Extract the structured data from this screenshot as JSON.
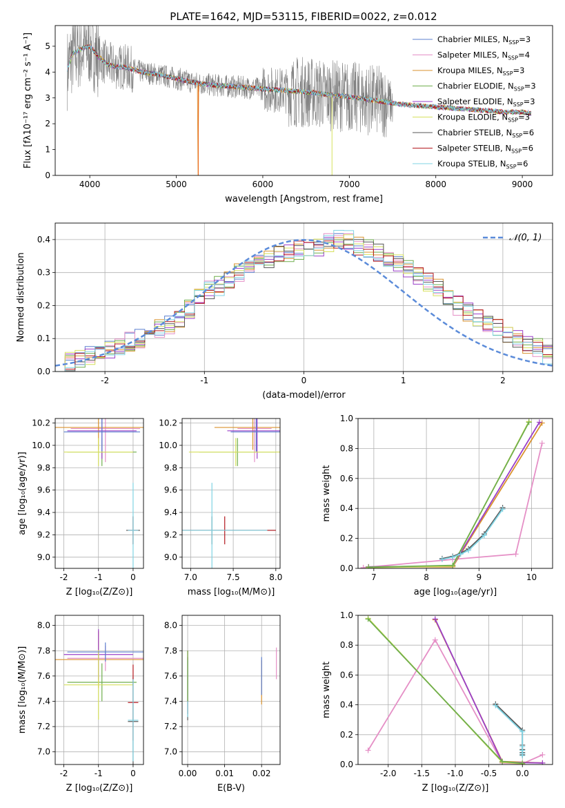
{
  "figure": {
    "title": "PLATE=1642, MJD=53115, FIBERID=0022, z=0.012"
  },
  "colors": {
    "Chabrier MILES": "#5b7fcf",
    "Salpeter MILES": "#e58fc6",
    "Kroupa MILES": "#d9922e",
    "Chabrier ELODIE": "#6fae4d",
    "Salpeter ELODIE": "#9a3fc9",
    "Kroupa ELODIE": "#d6e05c",
    "Chabrier STELIB": "#555555",
    "Salpeter STELIB": "#b3161c",
    "Kroupa STELIB": "#7fd3e3",
    "observed": "#808080",
    "gaussian": "#5b8bd9",
    "orange_line": "#ee6a22"
  },
  "chart_data": [
    {
      "id": "spectrum",
      "type": "line",
      "title": "PLATE=1642, MJD=53115, FIBERID=0022, z=0.012",
      "xlabel": "wavelength [Angstrom, rest frame]",
      "ylabel": "Flux [fλ10⁻¹⁷ erg cm⁻² s⁻¹ A⁻¹]",
      "xlim": [
        3600,
        9350
      ],
      "ylim": [
        0,
        5.8
      ],
      "xticks": [
        4000,
        5000,
        6000,
        7000,
        8000,
        9000
      ],
      "yticks": [
        0,
        1,
        2,
        3,
        4,
        5
      ],
      "legend_position": "top-right",
      "legend": [
        {
          "name": "Chabrier MILES",
          "nssp": "3"
        },
        {
          "name": "Salpeter MILES",
          "nssp": "4"
        },
        {
          "name": "Kroupa MILES",
          "nssp": "3"
        },
        {
          "name": "Chabrier ELODIE",
          "nssp": "3"
        },
        {
          "name": "Salpeter ELODIE",
          "nssp": "3"
        },
        {
          "name": "Kroupa ELODIE",
          "nssp": "3"
        },
        {
          "name": "Chabrier STELIB",
          "nssp": "6"
        },
        {
          "name": "Salpeter STELIB",
          "nssp": "6"
        },
        {
          "name": "Kroupa STELIB",
          "nssp": "6"
        }
      ],
      "model_continuum": {
        "x": [
          3740,
          3800,
          3900,
          4000,
          4100,
          4200,
          4300,
          4400,
          4600,
          4800,
          5000,
          5200,
          5400,
          5600,
          5800,
          6000,
          6200,
          6400,
          6600,
          6800,
          7000,
          7200,
          7400,
          7600,
          7800,
          8000,
          8200,
          8400,
          8600,
          8800,
          9000,
          9100
        ],
        "y": [
          4.1,
          4.7,
          4.9,
          5.0,
          4.6,
          4.3,
          4.2,
          4.2,
          4.0,
          3.9,
          3.75,
          3.6,
          3.5,
          3.45,
          3.4,
          3.35,
          3.3,
          3.25,
          3.2,
          3.1,
          3.05,
          2.95,
          2.85,
          2.75,
          2.7,
          2.65,
          2.6,
          2.55,
          2.5,
          2.45,
          2.45,
          2.4
        ]
      }
    },
    {
      "id": "residuals",
      "type": "bar",
      "xlabel": "(data-model)/error",
      "ylabel": "Normed distribution",
      "xlim": [
        -2.5,
        2.5
      ],
      "ylim": [
        0,
        0.45
      ],
      "xticks": [
        -2,
        -1,
        0,
        1,
        2
      ],
      "yticks": [
        0.0,
        0.1,
        0.2,
        0.3,
        0.4
      ],
      "legend": "𝒩(0, 1)",
      "legend_position": "top-right",
      "bin_edges_start": -2.5,
      "bin_width": 0.1,
      "histogram_mean": [
        0.02,
        0.03,
        0.04,
        0.05,
        0.06,
        0.065,
        0.08,
        0.09,
        0.1,
        0.11,
        0.13,
        0.14,
        0.16,
        0.19,
        0.22,
        0.25,
        0.26,
        0.28,
        0.3,
        0.31,
        0.33,
        0.34,
        0.35,
        0.36,
        0.37,
        0.38,
        0.38,
        0.39,
        0.4,
        0.4,
        0.38,
        0.37,
        0.36,
        0.34,
        0.33,
        0.31,
        0.29,
        0.27,
        0.25,
        0.22,
        0.2,
        0.18,
        0.16,
        0.15,
        0.13,
        0.11,
        0.1,
        0.08,
        0.07,
        0.05
      ],
      "gaussian": {
        "mu": 0,
        "sigma": 1
      }
    },
    {
      "id": "age_vs_Z",
      "type": "scatter",
      "xlabel": "Z [log₁₀(Z/Z⊙)]",
      "ylabel": "age  [log₁₀(age/yr)]",
      "xlim": [
        -2.25,
        0.3
      ],
      "ylim": [
        8.9,
        10.24
      ],
      "xticks": [
        -2,
        -1,
        0
      ],
      "yticks": [
        9.0,
        9.2,
        9.4,
        9.6,
        9.8,
        10.0,
        10.2
      ],
      "points": [
        {
          "x": -0.8,
          "y": 10.15,
          "xerr": 1.0,
          "yerr": 0.6,
          "series": "Salpeter MILES"
        },
        {
          "x": -1.0,
          "y": 10.16,
          "xerr": 1.3,
          "yerr": 0.4,
          "series": "Kroupa MILES"
        },
        {
          "x": -0.9,
          "y": 9.94,
          "xerr": 1.0,
          "yerr": 0.25,
          "series": "Chabrier ELODIE"
        },
        {
          "x": -0.9,
          "y": 10.13,
          "xerr": 1.0,
          "yerr": 0.5,
          "series": "Salpeter ELODIE"
        },
        {
          "x": -1.0,
          "y": 9.94,
          "xerr": 1.0,
          "yerr": 0.25,
          "series": "Kroupa ELODIE"
        },
        {
          "x": -0.9,
          "y": 10.12,
          "xerr": 1.1,
          "yerr": 0.35,
          "series": "Chabrier MILES"
        },
        {
          "x": 0.0,
          "y": 9.24,
          "xerr": 0.2,
          "yerr": 0.25,
          "series": "Chabrier STELIB"
        },
        {
          "x": 0.0,
          "y": 9.24,
          "xerr": 0.15,
          "yerr": 0.25,
          "series": "Salpeter STELIB"
        },
        {
          "x": 0.0,
          "y": 9.24,
          "xerr": 0.15,
          "yerr": 0.85,
          "series": "Kroupa STELIB"
        }
      ]
    },
    {
      "id": "age_vs_mass",
      "type": "scatter",
      "xlabel": "mass [log₁₀(M/M⊙)]",
      "xlim": [
        6.9,
        8.05
      ],
      "ylim": [
        8.9,
        10.24
      ],
      "xticks": [
        7.0,
        7.5,
        8.0
      ],
      "yticks": [
        9.0,
        9.2,
        9.4,
        9.6,
        9.8,
        10.0,
        10.2
      ],
      "points": [
        {
          "x": 7.75,
          "y": 10.15,
          "xerr": 0.2,
          "yerr": 0.6,
          "series": "Salpeter MILES"
        },
        {
          "x": 7.73,
          "y": 10.16,
          "xerr": 0.45,
          "yerr": 0.4,
          "series": "Kroupa MILES"
        },
        {
          "x": 7.55,
          "y": 9.94,
          "xerr": 0.45,
          "yerr": 0.25,
          "series": "Chabrier ELODIE"
        },
        {
          "x": 7.78,
          "y": 10.13,
          "xerr": 0.35,
          "yerr": 0.5,
          "series": "Salpeter ELODIE"
        },
        {
          "x": 7.53,
          "y": 9.94,
          "xerr": 0.55,
          "yerr": 0.25,
          "series": "Kroupa ELODIE"
        },
        {
          "x": 7.77,
          "y": 10.12,
          "xerr": 0.3,
          "yerr": 0.35,
          "series": "Chabrier MILES"
        },
        {
          "x": 7.25,
          "y": 9.24,
          "xerr": 0.75,
          "yerr": 0.25,
          "series": "Chabrier STELIB"
        },
        {
          "x": 7.4,
          "y": 9.24,
          "xerr": 0.6,
          "yerr": 0.25,
          "series": "Salpeter STELIB"
        },
        {
          "x": 7.25,
          "y": 9.24,
          "xerr": 0.65,
          "yerr": 0.85,
          "series": "Kroupa STELIB"
        }
      ]
    },
    {
      "id": "mass_weight_vs_age",
      "type": "line",
      "xlabel": "age  [log₁₀(age/yr)]",
      "ylabel": "mass weight",
      "xlim": [
        6.7,
        10.4
      ],
      "ylim": [
        0,
        1
      ],
      "xticks": [
        7,
        8,
        9,
        10
      ],
      "yticks": [
        0.0,
        0.2,
        0.4,
        0.6,
        0.8,
        1.0
      ],
      "series": [
        {
          "name": "Salpeter MILES",
          "x": [
            6.8,
            8.5,
            9.7,
            10.2
          ],
          "y": [
            0.005,
            0.06,
            0.095,
            0.835
          ]
        },
        {
          "name": "Kroupa MILES",
          "x": [
            6.9,
            8.5,
            10.2
          ],
          "y": [
            0.01,
            0.01,
            0.97
          ]
        },
        {
          "name": "Salpeter ELODIE",
          "x": [
            6.9,
            8.5,
            10.15
          ],
          "y": [
            0.01,
            0.015,
            0.975
          ]
        },
        {
          "name": "Kroupa ELODIE",
          "x": [
            6.9,
            8.5,
            9.95
          ],
          "y": [
            0.005,
            0.015,
            0.98
          ]
        },
        {
          "name": "Chabrier ELODIE",
          "x": [
            6.9,
            8.5,
            9.95
          ],
          "y": [
            0.008,
            0.02,
            0.975
          ]
        },
        {
          "name": "Chabrier STELIB",
          "x": [
            8.3,
            8.5,
            8.65,
            8.8,
            9.1,
            9.45
          ],
          "y": [
            0.065,
            0.08,
            0.1,
            0.13,
            0.23,
            0.405
          ]
        },
        {
          "name": "Kroupa STELIB",
          "x": [
            8.3,
            8.5,
            8.65,
            8.8,
            9.1,
            9.45
          ],
          "y": [
            0.06,
            0.075,
            0.095,
            0.12,
            0.22,
            0.395
          ]
        }
      ]
    },
    {
      "id": "mass_vs_Z",
      "type": "scatter",
      "xlabel": "Z [log₁₀(Z/Z⊙)]",
      "ylabel": "mass [log₁₀(M/M⊙)]",
      "xlim": [
        -2.25,
        0.3
      ],
      "ylim": [
        6.9,
        8.08
      ],
      "xticks": [
        -2,
        -1,
        0
      ],
      "yticks": [
        7.0,
        7.2,
        7.4,
        7.6,
        7.8,
        8.0
      ],
      "points": [
        {
          "x": -0.8,
          "y": 7.74,
          "xerr": 1.1,
          "yerr": 0.2,
          "series": "Salpeter MILES"
        },
        {
          "x": -1.0,
          "y": 7.73,
          "xerr": 1.3,
          "yerr": 0.45,
          "series": "Kroupa MILES"
        },
        {
          "x": -0.9,
          "y": 7.55,
          "xerr": 1.0,
          "yerr": 0.3,
          "series": "Chabrier ELODIE"
        },
        {
          "x": -1.0,
          "y": 7.77,
          "xerr": 1.0,
          "yerr": 0.4,
          "series": "Salpeter ELODIE"
        },
        {
          "x": -1.0,
          "y": 7.53,
          "xerr": 1.0,
          "yerr": 0.55,
          "series": "Kroupa ELODIE"
        },
        {
          "x": -0.8,
          "y": 7.79,
          "xerr": 1.1,
          "yerr": 0.15,
          "series": "Chabrier MILES"
        },
        {
          "x": 0.0,
          "y": 7.24,
          "xerr": 0.15,
          "yerr": 0.7,
          "series": "Chabrier STELIB"
        },
        {
          "x": 0.0,
          "y": 7.39,
          "xerr": 0.15,
          "yerr": 0.6,
          "series": "Salpeter STELIB"
        },
        {
          "x": 0.0,
          "y": 7.25,
          "xerr": 0.15,
          "yerr": 0.65,
          "series": "Kroupa STELIB"
        }
      ]
    },
    {
      "id": "mass_vs_ebv",
      "type": "scatter",
      "xlabel": "E(B-V)",
      "xlim": [
        -0.0015,
        0.025
      ],
      "ylim": [
        6.9,
        8.08
      ],
      "xticks": [
        0.0,
        0.01,
        0.02
      ],
      "yticks": [
        7.0,
        7.2,
        7.4,
        7.6,
        7.8,
        8.0
      ],
      "points": [
        {
          "x": 0.0,
          "y": 7.5,
          "yerr": 0.5,
          "series": "Chabrier STELIB"
        },
        {
          "x": 0.0,
          "y": 7.55,
          "yerr": 0.5,
          "series": "Salpeter STELIB"
        },
        {
          "x": 0.0,
          "y": 7.5,
          "yerr": 0.45,
          "series": "Kroupa STELIB"
        },
        {
          "x": 0.0,
          "y": 7.6,
          "yerr": 0.4,
          "series": "Chabrier ELODIE"
        },
        {
          "x": 0.02,
          "y": 7.55,
          "yerr": 0.35,
          "series": "Kroupa MILES"
        },
        {
          "x": 0.02,
          "y": 7.6,
          "yerr": 0.3,
          "series": "Chabrier MILES"
        },
        {
          "x": 0.024,
          "y": 7.7,
          "yerr": 0.25,
          "series": "Salpeter MILES"
        }
      ]
    },
    {
      "id": "mass_weight_vs_Z",
      "type": "line",
      "xlabel": "Z [log₁₀(Z/Z⊙)]",
      "ylabel": "mass weight",
      "xlim": [
        -2.45,
        0.45
      ],
      "ylim": [
        0,
        1
      ],
      "xticks": [
        -2.0,
        -1.5,
        -1.0,
        -0.5,
        0.0
      ],
      "yticks": [
        0.0,
        0.2,
        0.4,
        0.6,
        0.8,
        1.0
      ],
      "series": [
        {
          "name": "Salpeter MILES",
          "x": [
            -2.3,
            -1.3,
            -0.3,
            0.0,
            0.3
          ],
          "y": [
            0.095,
            0.835,
            0.01,
            0.005,
            0.065
          ]
        },
        {
          "name": "Kroupa MILES",
          "x": [
            -1.3,
            -0.3,
            0.3
          ],
          "y": [
            0.97,
            0.02,
            0.01
          ]
        },
        {
          "name": "Salpeter ELODIE",
          "x": [
            -1.3,
            -0.3,
            0.3
          ],
          "y": [
            0.975,
            0.015,
            0.01
          ]
        },
        {
          "name": "Kroupa ELODIE",
          "x": [
            -2.3,
            -0.3,
            0.0
          ],
          "y": [
            0.98,
            0.015,
            0.005
          ]
        },
        {
          "name": "Chabrier ELODIE",
          "x": [
            -2.3,
            -0.3,
            0.0
          ],
          "y": [
            0.975,
            0.02,
            0.008
          ]
        },
        {
          "name": "Chabrier STELIB",
          "x": [
            -0.4,
            0.0,
            0.0,
            0.0,
            0.0,
            0.0
          ],
          "y": [
            0.405,
            0.23,
            0.13,
            0.1,
            0.08,
            0.065
          ]
        },
        {
          "name": "Kroupa STELIB",
          "x": [
            -0.4,
            0.0,
            0.0,
            0.0,
            0.0,
            0.0
          ],
          "y": [
            0.395,
            0.22,
            0.12,
            0.095,
            0.075,
            0.06
          ]
        }
      ]
    }
  ]
}
